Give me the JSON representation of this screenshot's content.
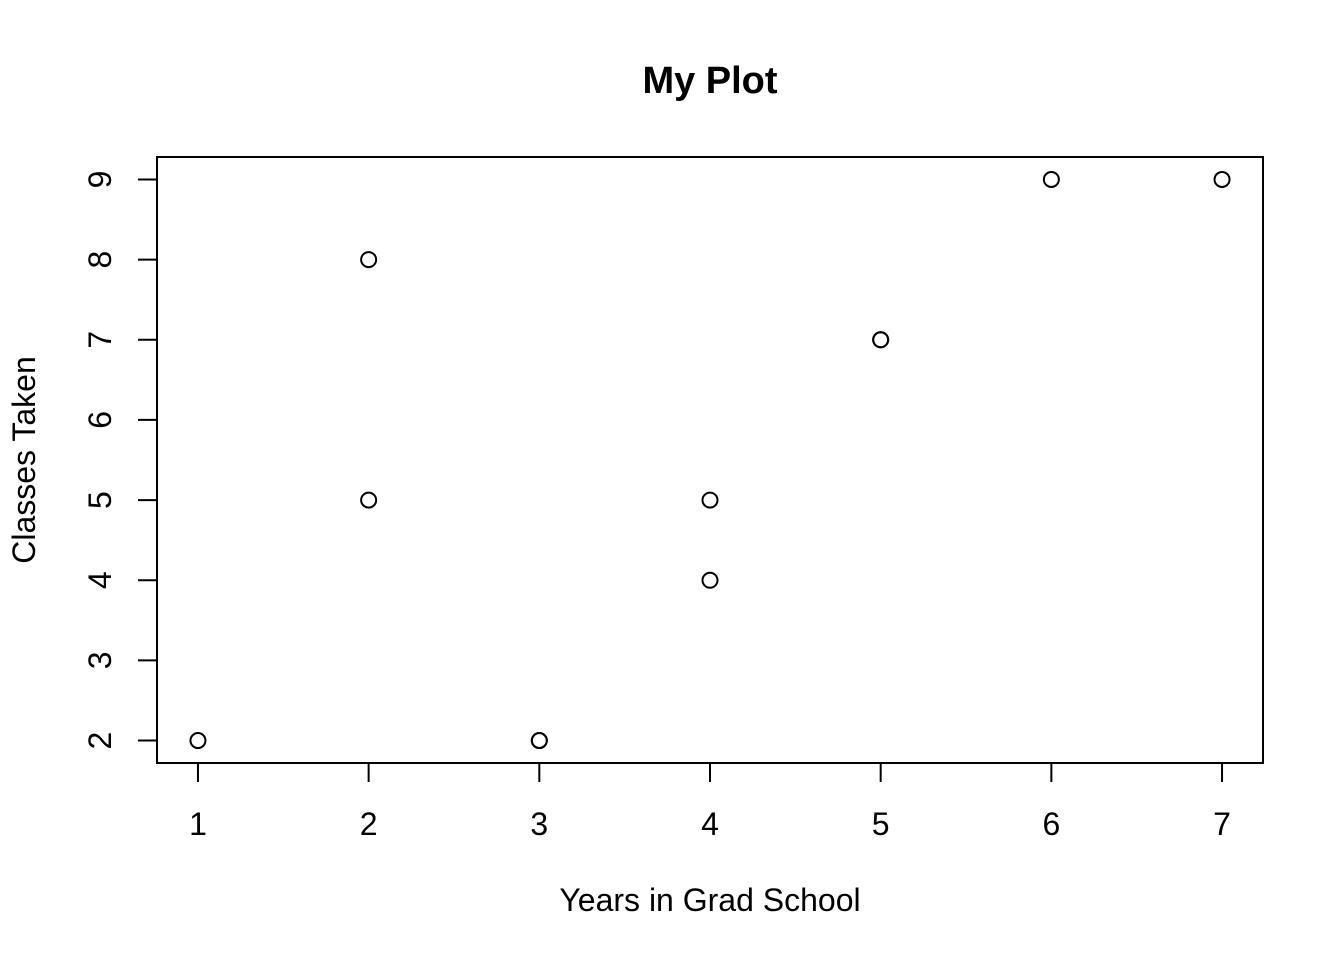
{
  "chart_data": {
    "type": "scatter",
    "title": "My Plot",
    "xlabel": "Years in Grad School",
    "ylabel": "Classes Taken",
    "x_ticks": [
      1,
      2,
      3,
      4,
      5,
      6,
      7
    ],
    "y_ticks": [
      2,
      3,
      4,
      5,
      6,
      7,
      8,
      9
    ],
    "xlim": [
      0.76,
      7.24
    ],
    "ylim": [
      1.72,
      9.28
    ],
    "grid": false,
    "series": [
      {
        "x": [
          1,
          2,
          2,
          3,
          3,
          4,
          4,
          5,
          5,
          6,
          7
        ],
        "y": [
          2,
          5,
          8,
          2,
          2,
          4,
          5,
          7,
          7,
          9,
          9
        ]
      }
    ]
  }
}
